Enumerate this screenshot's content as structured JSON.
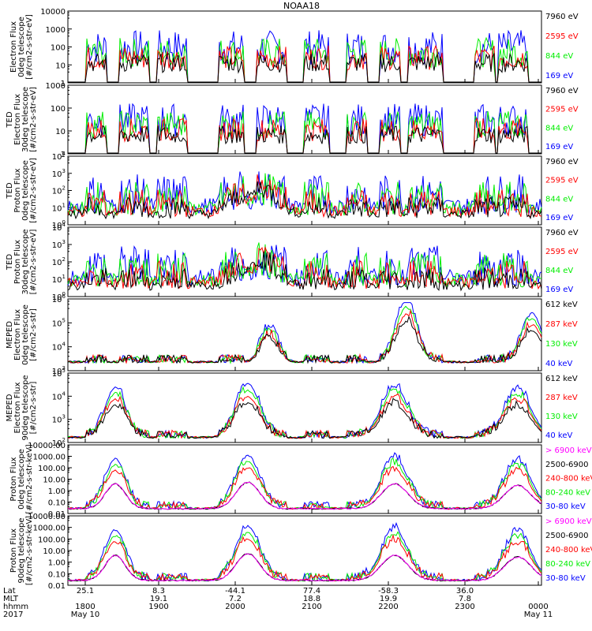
{
  "title": "NOAA18",
  "colors": {
    "black": "#000000",
    "red": "#ff0000",
    "green": "#00ee00",
    "blue": "#0000ff",
    "magenta": "#ff00ff"
  },
  "chart_data": [
    {
      "type": "line",
      "ylabel": [
        "Electron Flux",
        "0deg telescope",
        "[#/cm2-s-str-eV]"
      ],
      "yticks": [
        "10000",
        "1000",
        "100",
        "10",
        "1"
      ],
      "legend": [
        {
          "label": "7960 eV",
          "color": "#000000"
        },
        {
          "label": "2595 eV",
          "color": "#ff0000"
        },
        {
          "label": "844 eV",
          "color": "#00ee00"
        },
        {
          "label": "169 eV",
          "color": "#0000ff"
        }
      ]
    },
    {
      "type": "line",
      "ylabel": [
        "TED",
        "Electron Flux",
        "30deg telescope",
        "[#/cm2-s-str-eV]"
      ],
      "yticks": [
        "1000",
        "100",
        "10",
        "1"
      ],
      "legend": [
        {
          "label": "7960 eV",
          "color": "#000000"
        },
        {
          "label": "2595 eV",
          "color": "#ff0000"
        },
        {
          "label": "844 eV",
          "color": "#00ee00"
        },
        {
          "label": "169 eV",
          "color": "#0000ff"
        }
      ]
    },
    {
      "type": "line",
      "ylabel": [
        "TED",
        "Proton Flux",
        "0deg telescope",
        "[#/cm2-s-str-eV]"
      ],
      "yticks": [
        "10",
        "10",
        "10",
        "10",
        "10"
      ],
      "yticks_exp": [
        "4",
        "3",
        "2",
        "1",
        "0"
      ],
      "legend": [
        {
          "label": "7960 eV",
          "color": "#000000"
        },
        {
          "label": "2595 eV",
          "color": "#ff0000"
        },
        {
          "label": "844 eV",
          "color": "#00ee00"
        },
        {
          "label": "169 eV",
          "color": "#0000ff"
        }
      ]
    },
    {
      "type": "line",
      "ylabel": [
        "TED",
        "Proton Flux",
        "30deg telescope",
        "[#/cm2-s-str-eV]"
      ],
      "yticks": [
        "10",
        "10",
        "10",
        "10",
        "10"
      ],
      "yticks_exp": [
        "4",
        "3",
        "2",
        "1",
        "0"
      ],
      "legend": [
        {
          "label": "7960 eV",
          "color": "#000000"
        },
        {
          "label": "2595 eV",
          "color": "#ff0000"
        },
        {
          "label": "844 eV",
          "color": "#00ee00"
        },
        {
          "label": "169 eV",
          "color": "#0000ff"
        }
      ]
    },
    {
      "type": "line",
      "ylabel": [
        "MEPED",
        "Electron Flux",
        "0deg telescope",
        "[#/cm2-s-str]"
      ],
      "yticks": [
        "10",
        "10",
        "10",
        "10"
      ],
      "yticks_exp": [
        "6",
        "5",
        "4",
        "3"
      ],
      "legend": [
        {
          "label": "612 keV",
          "color": "#000000"
        },
        {
          "label": "287 keV",
          "color": "#ff0000"
        },
        {
          "label": "130 keV",
          "color": "#00ee00"
        },
        {
          "label": "40 keV",
          "color": "#0000ff"
        }
      ]
    },
    {
      "type": "line",
      "ylabel": [
        "MEPED",
        "Electron Flux",
        "90deg telescope",
        "[#/cm2-s-str]"
      ],
      "yticks": [
        "10",
        "10",
        "10",
        "10"
      ],
      "yticks_exp": [
        "5",
        "4",
        "3",
        "2"
      ],
      "legend": [
        {
          "label": "612 keV",
          "color": "#000000"
        },
        {
          "label": "287 keV",
          "color": "#ff0000"
        },
        {
          "label": "130 keV",
          "color": "#00ee00"
        },
        {
          "label": "40 keV",
          "color": "#0000ff"
        }
      ]
    },
    {
      "type": "line",
      "ylabel": [
        "Proton Flux",
        "0deg telescope",
        "[#/cm2-s-str-keV]"
      ],
      "yticks": [
        "10000.00",
        "1000.00",
        "100.00",
        "10.00",
        "1.00",
        "0.10",
        "0.01"
      ],
      "legend": [
        {
          "label": "> 6900 keV",
          "color": "#ff00ff"
        },
        {
          "label": "2500-6900",
          "color": "#000000"
        },
        {
          "label": "240-800 keV",
          "color": "#ff0000"
        },
        {
          "label": "80-240 keV",
          "color": "#00ee00"
        },
        {
          "label": "30-80 keV",
          "color": "#0000ff"
        }
      ]
    },
    {
      "type": "line",
      "ylabel": [
        "Proton Flux",
        "90deg telescope",
        "[#/cm2-s-str-keV]"
      ],
      "yticks": [
        "10000.00",
        "1000.00",
        "100.00",
        "10.00",
        "1.00",
        "0.10",
        "0.01"
      ],
      "legend": [
        {
          "label": "> 6900 keV",
          "color": "#ff00ff"
        },
        {
          "label": "2500-6900",
          "color": "#000000"
        },
        {
          "label": "240-800 keV",
          "color": "#ff0000"
        },
        {
          "label": "80-240 keV",
          "color": "#00ee00"
        },
        {
          "label": "30-80 keV",
          "color": "#0000ff"
        }
      ]
    }
  ],
  "x_axis": {
    "row_labels": [
      "Lat",
      "MLT",
      "hhmm",
      "2017"
    ],
    "ticks": [
      {
        "lat": "25.1",
        "mlt": "",
        "hhmm": "1800",
        "date": "May 10"
      },
      {
        "lat": "8.3",
        "mlt": "19.1",
        "hhmm": "1900",
        "date": ""
      },
      {
        "lat": "-44.1",
        "mlt": "7.2",
        "hhmm": "2000",
        "date": ""
      },
      {
        "lat": "77.4",
        "mlt": "18.8",
        "hhmm": "2100",
        "date": ""
      },
      {
        "lat": "-58.3",
        "mlt": "19.9",
        "hhmm": "2200",
        "date": ""
      },
      {
        "lat": "36.0",
        "mlt": "7.8",
        "hhmm": "2300",
        "date": ""
      },
      {
        "lat": "",
        "mlt": "",
        "hhmm": "0000",
        "date": "May 11"
      }
    ]
  }
}
